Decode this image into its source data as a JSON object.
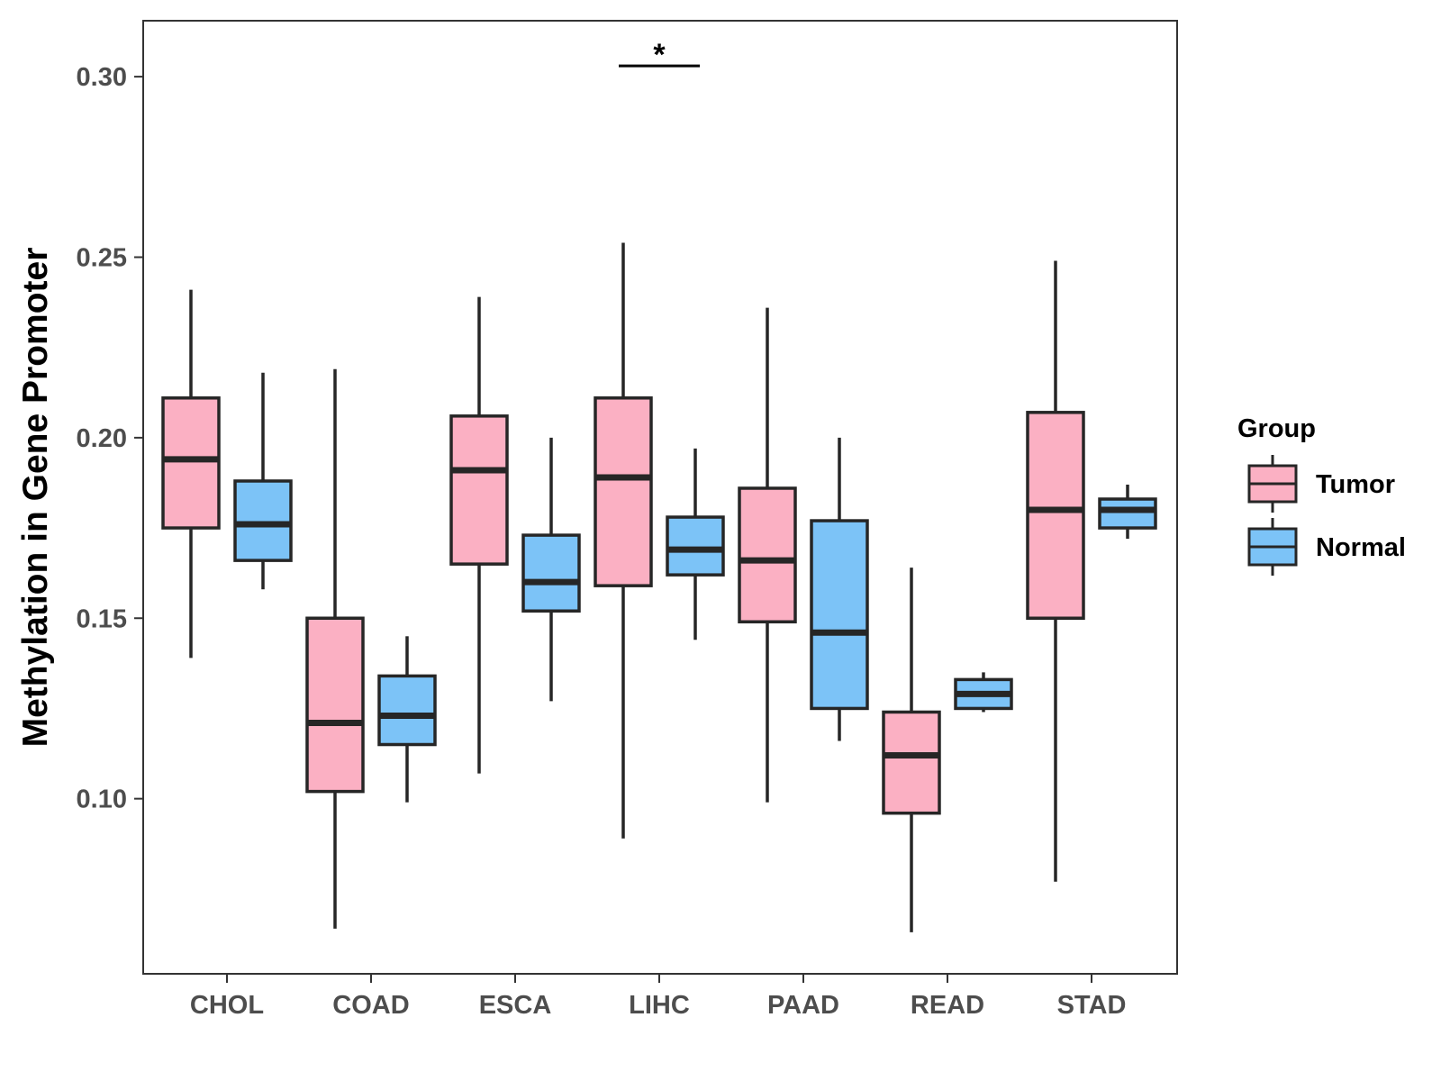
{
  "chart_data": {
    "type": "boxplot",
    "ylabel": "Methylation in Gene Promoter",
    "xlabel": "",
    "ylim": [
      0.0515,
      0.3155
    ],
    "yticks": [
      0.1,
      0.15,
      0.2,
      0.25,
      0.3
    ],
    "ytick_labels": [
      "0.10",
      "0.15",
      "0.20",
      "0.25",
      "0.30"
    ],
    "categories": [
      "CHOL",
      "COAD",
      "ESCA",
      "LIHC",
      "PAAD",
      "READ",
      "STAD"
    ],
    "legend": {
      "title": "Group",
      "position": "right"
    },
    "series": [
      {
        "name": "Tumor",
        "color": "#FBB0C3",
        "boxes": [
          {
            "min": 0.139,
            "q1": 0.175,
            "median": 0.194,
            "q3": 0.211,
            "max": 0.241
          },
          {
            "min": 0.064,
            "q1": 0.102,
            "median": 0.121,
            "q3": 0.15,
            "max": 0.219
          },
          {
            "min": 0.107,
            "q1": 0.165,
            "median": 0.191,
            "q3": 0.206,
            "max": 0.239
          },
          {
            "min": 0.089,
            "q1": 0.159,
            "median": 0.189,
            "q3": 0.211,
            "max": 0.254
          },
          {
            "min": 0.099,
            "q1": 0.149,
            "median": 0.166,
            "q3": 0.186,
            "max": 0.236
          },
          {
            "min": 0.063,
            "q1": 0.096,
            "median": 0.112,
            "q3": 0.124,
            "max": 0.164
          },
          {
            "min": 0.077,
            "q1": 0.15,
            "median": 0.18,
            "q3": 0.207,
            "max": 0.249
          }
        ]
      },
      {
        "name": "Normal",
        "color": "#7CC3F7",
        "boxes": [
          {
            "min": 0.158,
            "q1": 0.166,
            "median": 0.176,
            "q3": 0.188,
            "max": 0.218
          },
          {
            "min": 0.099,
            "q1": 0.115,
            "median": 0.123,
            "q3": 0.134,
            "max": 0.145
          },
          {
            "min": 0.127,
            "q1": 0.152,
            "median": 0.16,
            "q3": 0.173,
            "max": 0.2
          },
          {
            "min": 0.144,
            "q1": 0.162,
            "median": 0.169,
            "q3": 0.178,
            "max": 0.197
          },
          {
            "min": 0.116,
            "q1": 0.125,
            "median": 0.146,
            "q3": 0.177,
            "max": 0.2
          },
          {
            "min": 0.124,
            "q1": 0.125,
            "median": 0.129,
            "q3": 0.133,
            "max": 0.135
          },
          {
            "min": 0.172,
            "q1": 0.175,
            "median": 0.18,
            "q3": 0.183,
            "max": 0.187
          }
        ]
      }
    ],
    "annotations": [
      {
        "category": "LIHC",
        "label": "*",
        "y": 0.303
      }
    ]
  }
}
